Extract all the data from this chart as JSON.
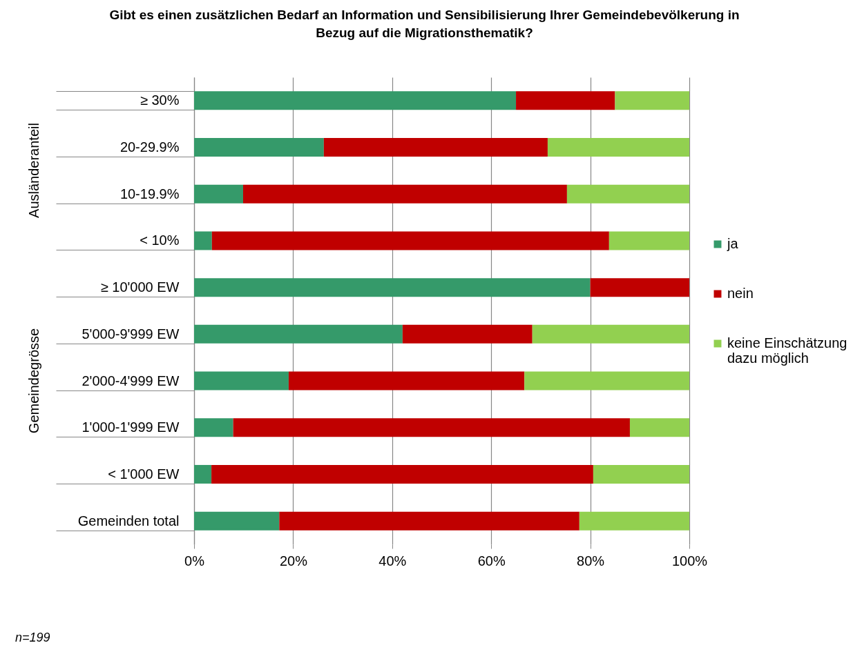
{
  "chart_data": {
    "type": "bar",
    "orientation": "horizontal",
    "stacked": true,
    "title": "Gibt es einen zusätzlichen Bedarf an Information und Sensibilisierung Ihrer Gemeindebevölkerung in Bezug auf die Migrationsthematik?",
    "categories": [
      "≥ 30%",
      "20-29.9%",
      "10-19.9%",
      "< 10%",
      "≥ 10'000 EW",
      "5'000-9'999 EW",
      "2'000-4'999 EW",
      "1'000-1'999 EW",
      "< 1'000 EW",
      "Gemeinden total"
    ],
    "series": [
      {
        "name": "ja",
        "color": "#359a6a",
        "values": [
          65,
          26.2,
          9.9,
          3.6,
          80,
          42.1,
          19.1,
          7.9,
          3.5,
          17.2
        ]
      },
      {
        "name": "nein",
        "color": "#c00000",
        "values": [
          20,
          45.2,
          65.4,
          80.2,
          20,
          26.2,
          47.6,
          80.1,
          77.1,
          60.6
        ]
      },
      {
        "name": "keine Einschätzung dazu möglich",
        "color": "#92d050",
        "values": [
          15,
          28.6,
          24.7,
          16.2,
          0,
          31.7,
          33.3,
          12,
          19.4,
          22.2
        ]
      }
    ],
    "xlim": [
      0,
      100
    ],
    "xticks": [
      {
        "value": 0,
        "label": "0%"
      },
      {
        "value": 20,
        "label": "20%"
      },
      {
        "value": 40,
        "label": "40%"
      },
      {
        "value": 60,
        "label": "60%"
      },
      {
        "value": 80,
        "label": "80%"
      },
      {
        "value": 100,
        "label": "100%"
      }
    ],
    "grid": "x",
    "legend": "right",
    "annotations": [
      "Ausländeranteil",
      "Gemeindegrösse",
      "n=199"
    ]
  }
}
